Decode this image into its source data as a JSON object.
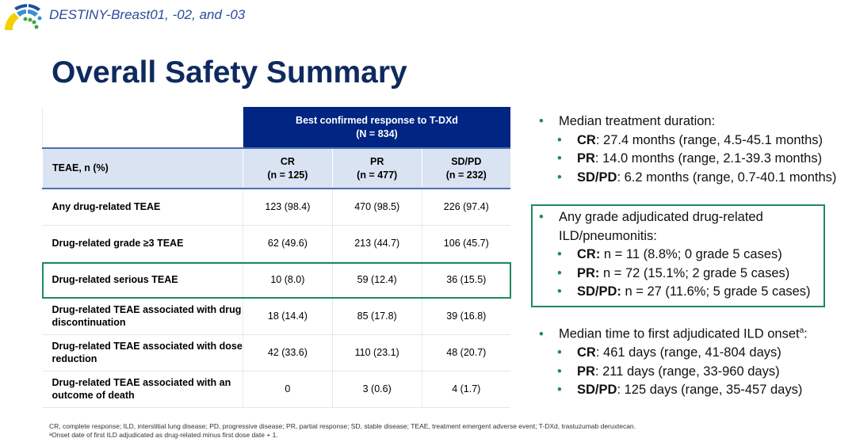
{
  "header": {
    "subtitle": "DESTINY-Breast01, -02, and -03",
    "title": "Overall Safety Summary"
  },
  "colors": {
    "navy": "#002583",
    "title": "#0f2a5e",
    "green": "#1e8a5a",
    "subheader": "#dae3f2"
  },
  "table": {
    "group_header": [
      "Best confirmed response to T-DXd",
      "(N = 834)"
    ],
    "row_header": "TEAE, n (%)",
    "columns": [
      {
        "name": "CR",
        "n": "(n = 125)"
      },
      {
        "name": "PR",
        "n": "(n = 477)"
      },
      {
        "name": "SD/PD",
        "n": "(n = 232)"
      }
    ],
    "rows": [
      {
        "label": "Any drug-related TEAE",
        "values": [
          "123 (98.4)",
          "470 (98.5)",
          "226 (97.4)"
        ]
      },
      {
        "label": "Drug-related grade ≥3 TEAE",
        "values": [
          "62 (49.6)",
          "213 (44.7)",
          "106 (45.7)"
        ]
      },
      {
        "label": "Drug-related serious TEAE",
        "values": [
          "10 (8.0)",
          "59 (12.4)",
          "36 (15.5)"
        ]
      },
      {
        "label": "Drug-related TEAE associated with drug discontinuation",
        "values": [
          "18 (14.4)",
          "85 (17.8)",
          "39 (16.8)"
        ]
      },
      {
        "label": "Drug-related TEAE associated with dose reduction",
        "values": [
          "42 (33.6)",
          "110 (23.1)",
          "48 (20.7)"
        ]
      },
      {
        "label": "Drug-related TEAE associated with an outcome of death",
        "values": [
          "0",
          "3 (0.6)",
          "4 (1.7)"
        ]
      }
    ]
  },
  "bullets": [
    {
      "text": "Median treatment duration:",
      "subs": [
        {
          "k": "CR",
          "v": ": 27.4 months (range, 4.5-45.1 months)"
        },
        {
          "k": "PR",
          "v": ": 14.0 months (range, 2.1-39.3 months)"
        },
        {
          "k": "SD/PD",
          "v": ": 6.2 months (range, 0.7-40.1 months)"
        }
      ]
    },
    {
      "text": "Any grade adjudicated drug-related",
      "text2": "ILD/pneumonitis:",
      "subs": [
        {
          "k": "CR:",
          "v": " n = 11 (8.8%; 0 grade 5 cases)"
        },
        {
          "k": "PR:",
          "v": " n = 72 (15.1%; 2 grade 5 cases)"
        },
        {
          "k": "SD/PD:",
          "v": " n = 27 (11.6%; 5 grade 5 cases)"
        }
      ]
    },
    {
      "text": "Median time to first adjudicated ILD onset",
      "sup": "a",
      "colon": ":",
      "subs": [
        {
          "k": "CR",
          "v": ": 461 days (range, 41-804 days)"
        },
        {
          "k": "PR",
          "v": ": 211 days (range, 33-960 days)"
        },
        {
          "k": "SD/PD",
          "v": ": 125 days (range, 35-457 days)"
        }
      ]
    }
  ],
  "footnotes": [
    "CR, complete response; ILD, interstitial lung disease; PD, progressive disease; PR, partial response; SD, stable disease; TEAE, treatment emergent adverse event; T-DXd, trastuzumab deruxtecan.",
    "ᵃOnset date of first ILD adjudicated as drug-related minus first dose date + 1."
  ],
  "bullet_char": "•"
}
